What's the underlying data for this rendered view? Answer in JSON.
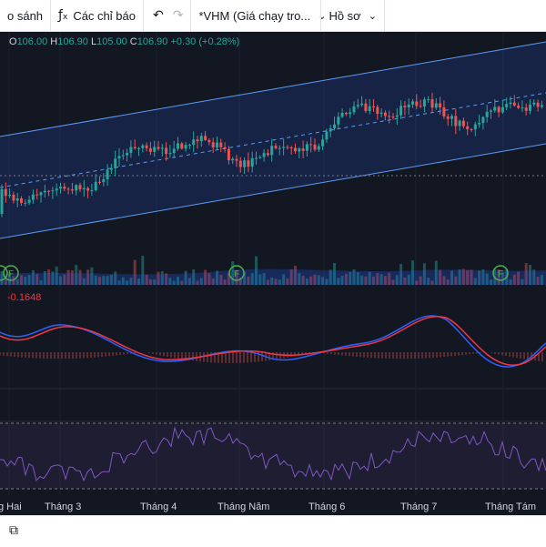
{
  "toolbar": {
    "compare_label": "o sánh",
    "indicators_icon": "function-icon",
    "indicators_label": "Các chỉ báo",
    "undo_icon": "undo-icon",
    "redo_icon": "redo-icon",
    "symbol_label": "*VHM (Giá chạy tro...",
    "profile_label": "Hồ sơ"
  },
  "legend": {
    "o_label": "O",
    "o_value": "106.00",
    "h_label": "H",
    "h_value": "106.90",
    "l_label": "L",
    "l_value": "105.00",
    "c_label": "C",
    "c_value": "106.90",
    "change": "+0.30 (+0.28%)"
  },
  "indicator": {
    "value": "-0.1648"
  },
  "markers": {
    "label": "F"
  },
  "x_axis": [
    "g Hai",
    "Tháng 3",
    "Tháng 4",
    "Tháng Năm",
    "Tháng 6",
    "Tháng 7",
    "Tháng Tám"
  ],
  "bottom_bar": {
    "icon": "screenshot-icon"
  },
  "colors": {
    "up": "#26a69a",
    "down": "#ef5350",
    "channel": "#2962ff",
    "macd_line": "#2962ff",
    "signal_line": "#f23645",
    "rsi": "#7e57c2",
    "background": "#131722"
  }
}
